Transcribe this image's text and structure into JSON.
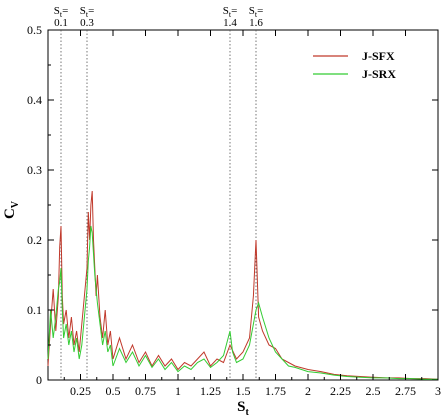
{
  "chart_data": {
    "type": "line",
    "xlabel_main": "S",
    "xlabel_sub": "t",
    "ylabel_main": "C",
    "ylabel_sub": "V",
    "xlim": [
      0,
      3
    ],
    "ylim": [
      0,
      0.5
    ],
    "x_ticks": [
      0.25,
      0.5,
      0.75,
      1,
      1.25,
      1.5,
      1.75,
      2,
      2.25,
      2.5,
      2.75,
      3
    ],
    "x_tick_labels": [
      "0.25",
      "0.5",
      "0.75",
      "1",
      "1.25",
      "1.5",
      "1.75",
      "2",
      "2.25",
      "2.5",
      "2.75",
      "3"
    ],
    "y_ticks": [
      0,
      0.1,
      0.2,
      0.3,
      0.4,
      0.5
    ],
    "y_tick_labels": [
      "0",
      "0.1",
      "0.2",
      "0.3",
      "0.4",
      "0.5"
    ],
    "legend_position": "top-right",
    "markers": [
      {
        "x": 0.1,
        "label_top": "S =",
        "label_sub": "t",
        "label_value": "0.1"
      },
      {
        "x": 0.3,
        "label_top": "S =",
        "label_sub": "t",
        "label_value": "0.3"
      },
      {
        "x": 1.4,
        "label_top": "S =",
        "label_sub": "t",
        "label_value": "1.4"
      },
      {
        "x": 1.6,
        "label_top": "S =",
        "label_sub": "t",
        "label_value": "1.6"
      }
    ],
    "series": [
      {
        "name": "J-SFX",
        "color": "#c0392b",
        "points": [
          [
            0.0,
            0.02
          ],
          [
            0.02,
            0.08
          ],
          [
            0.04,
            0.13
          ],
          [
            0.06,
            0.07
          ],
          [
            0.08,
            0.12
          ],
          [
            0.09,
            0.19
          ],
          [
            0.1,
            0.22
          ],
          [
            0.11,
            0.12
          ],
          [
            0.12,
            0.08
          ],
          [
            0.14,
            0.1
          ],
          [
            0.16,
            0.06
          ],
          [
            0.18,
            0.09
          ],
          [
            0.2,
            0.05
          ],
          [
            0.22,
            0.07
          ],
          [
            0.24,
            0.04
          ],
          [
            0.26,
            0.08
          ],
          [
            0.28,
            0.12
          ],
          [
            0.3,
            0.16
          ],
          [
            0.31,
            0.24
          ],
          [
            0.32,
            0.2
          ],
          [
            0.33,
            0.25
          ],
          [
            0.34,
            0.27
          ],
          [
            0.35,
            0.2
          ],
          [
            0.36,
            0.16
          ],
          [
            0.37,
            0.12
          ],
          [
            0.38,
            0.15
          ],
          [
            0.4,
            0.09
          ],
          [
            0.42,
            0.06
          ],
          [
            0.44,
            0.1
          ],
          [
            0.46,
            0.05
          ],
          [
            0.48,
            0.07
          ],
          [
            0.5,
            0.03
          ],
          [
            0.55,
            0.06
          ],
          [
            0.6,
            0.03
          ],
          [
            0.65,
            0.05
          ],
          [
            0.7,
            0.025
          ],
          [
            0.75,
            0.04
          ],
          [
            0.8,
            0.02
          ],
          [
            0.85,
            0.035
          ],
          [
            0.9,
            0.02
          ],
          [
            0.95,
            0.03
          ],
          [
            1.0,
            0.015
          ],
          [
            1.05,
            0.025
          ],
          [
            1.1,
            0.02
          ],
          [
            1.15,
            0.03
          ],
          [
            1.2,
            0.04
          ],
          [
            1.25,
            0.02
          ],
          [
            1.3,
            0.03
          ],
          [
            1.35,
            0.025
          ],
          [
            1.4,
            0.05
          ],
          [
            1.45,
            0.03
          ],
          [
            1.5,
            0.04
          ],
          [
            1.55,
            0.06
          ],
          [
            1.58,
            0.12
          ],
          [
            1.6,
            0.2
          ],
          [
            1.62,
            0.09
          ],
          [
            1.65,
            0.07
          ],
          [
            1.7,
            0.05
          ],
          [
            1.75,
            0.045
          ],
          [
            1.8,
            0.03
          ],
          [
            1.85,
            0.025
          ],
          [
            1.9,
            0.02
          ],
          [
            2.0,
            0.015
          ],
          [
            2.1,
            0.012
          ],
          [
            2.2,
            0.008
          ],
          [
            2.3,
            0.006
          ],
          [
            2.4,
            0.005
          ],
          [
            2.5,
            0.004
          ],
          [
            2.6,
            0.003
          ],
          [
            2.7,
            0.003
          ],
          [
            2.8,
            0.002
          ],
          [
            2.9,
            0.002
          ],
          [
            3.0,
            0.001
          ]
        ]
      },
      {
        "name": "J-SRX",
        "color": "#33cc33",
        "points": [
          [
            0.0,
            0.03
          ],
          [
            0.02,
            0.1
          ],
          [
            0.04,
            0.06
          ],
          [
            0.06,
            0.09
          ],
          [
            0.08,
            0.13
          ],
          [
            0.09,
            0.14
          ],
          [
            0.1,
            0.16
          ],
          [
            0.11,
            0.1
          ],
          [
            0.12,
            0.06
          ],
          [
            0.14,
            0.08
          ],
          [
            0.16,
            0.05
          ],
          [
            0.18,
            0.07
          ],
          [
            0.2,
            0.04
          ],
          [
            0.22,
            0.06
          ],
          [
            0.24,
            0.03
          ],
          [
            0.26,
            0.05
          ],
          [
            0.28,
            0.09
          ],
          [
            0.3,
            0.13
          ],
          [
            0.31,
            0.17
          ],
          [
            0.32,
            0.19
          ],
          [
            0.33,
            0.22
          ],
          [
            0.34,
            0.21
          ],
          [
            0.35,
            0.18
          ],
          [
            0.36,
            0.15
          ],
          [
            0.37,
            0.13
          ],
          [
            0.38,
            0.11
          ],
          [
            0.4,
            0.08
          ],
          [
            0.42,
            0.05
          ],
          [
            0.44,
            0.07
          ],
          [
            0.46,
            0.04
          ],
          [
            0.48,
            0.05
          ],
          [
            0.5,
            0.02
          ],
          [
            0.55,
            0.045
          ],
          [
            0.6,
            0.025
          ],
          [
            0.65,
            0.04
          ],
          [
            0.7,
            0.02
          ],
          [
            0.75,
            0.035
          ],
          [
            0.8,
            0.018
          ],
          [
            0.85,
            0.03
          ],
          [
            0.9,
            0.015
          ],
          [
            0.95,
            0.025
          ],
          [
            1.0,
            0.012
          ],
          [
            1.05,
            0.02
          ],
          [
            1.1,
            0.015
          ],
          [
            1.15,
            0.025
          ],
          [
            1.2,
            0.03
          ],
          [
            1.25,
            0.018
          ],
          [
            1.3,
            0.025
          ],
          [
            1.35,
            0.035
          ],
          [
            1.4,
            0.07
          ],
          [
            1.42,
            0.04
          ],
          [
            1.45,
            0.025
          ],
          [
            1.5,
            0.03
          ],
          [
            1.55,
            0.05
          ],
          [
            1.58,
            0.08
          ],
          [
            1.6,
            0.1
          ],
          [
            1.62,
            0.11
          ],
          [
            1.65,
            0.09
          ],
          [
            1.7,
            0.06
          ],
          [
            1.75,
            0.04
          ],
          [
            1.8,
            0.03
          ],
          [
            1.85,
            0.02
          ],
          [
            1.9,
            0.018
          ],
          [
            2.0,
            0.012
          ],
          [
            2.1,
            0.01
          ],
          [
            2.2,
            0.007
          ],
          [
            2.3,
            0.005
          ],
          [
            2.4,
            0.004
          ],
          [
            2.5,
            0.003
          ],
          [
            2.6,
            0.003
          ],
          [
            2.7,
            0.002
          ],
          [
            2.8,
            0.002
          ],
          [
            2.9,
            0.001
          ],
          [
            3.0,
            0.001
          ]
        ]
      }
    ]
  }
}
